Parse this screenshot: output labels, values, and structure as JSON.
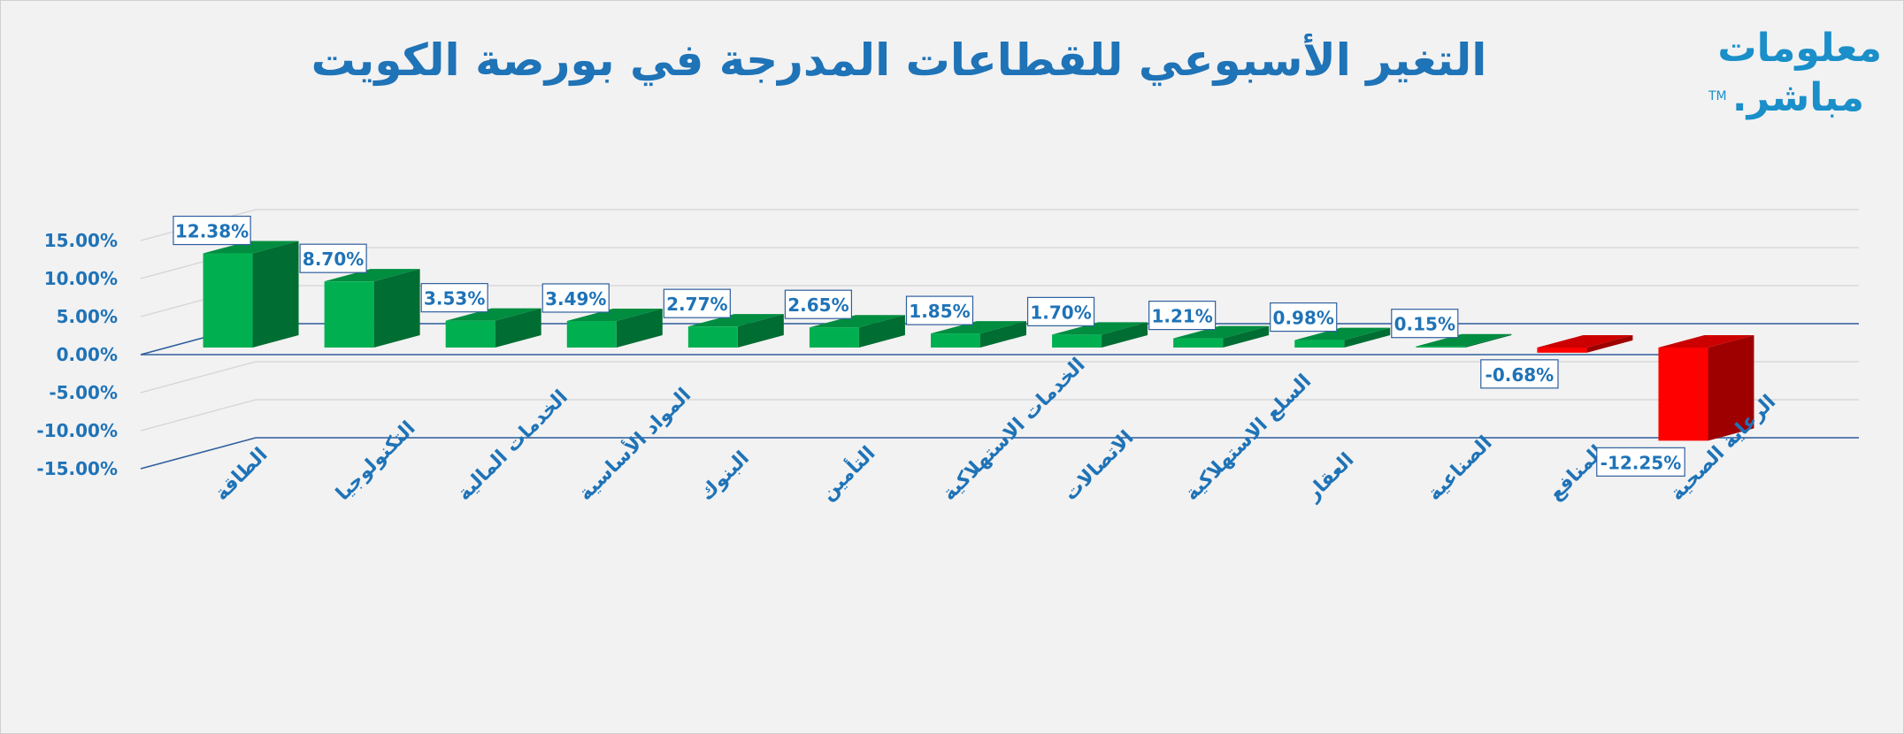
{
  "logo": {
    "line1": "معلومات",
    "line2": "مباشر.",
    "tm": "TM"
  },
  "chart_data": {
    "type": "bar",
    "title": "التغير الأسبوعي للقطاعات المدرجة في بورصة الكويت",
    "xlabel": "",
    "ylabel": "",
    "ylim": [
      -15,
      15
    ],
    "yticks": [
      "15.00%",
      "10.00%",
      "5.00%",
      "0.00%",
      "-5.00%",
      "-10.00%",
      "-15.00%"
    ],
    "categories": [
      "الطاقة",
      "التكنولوجيا",
      "الخدمات المالية",
      "المواد الأساسية",
      "البنوك",
      "التأمين",
      "الخدمات الاستهلاكية",
      "الاتصالات",
      "السلع الاستهلاكية",
      "العقار",
      "الصناعية",
      "المنافع",
      "الرعاية الصحية"
    ],
    "values": [
      12.38,
      8.7,
      3.53,
      3.49,
      2.77,
      2.65,
      1.85,
      1.7,
      1.21,
      0.98,
      0.15,
      -0.68,
      -12.25
    ],
    "value_labels": [
      "12.38%",
      "8.70%",
      "3.53%",
      "3.49%",
      "2.77%",
      "2.65%",
      "1.85%",
      "1.70%",
      "1.21%",
      "0.98%",
      "0.15%",
      "-0.68%",
      "-12.25%"
    ],
    "colors": {
      "positive": "#00b050",
      "negative": "#ff0000",
      "accent": "#1f73b7"
    }
  }
}
